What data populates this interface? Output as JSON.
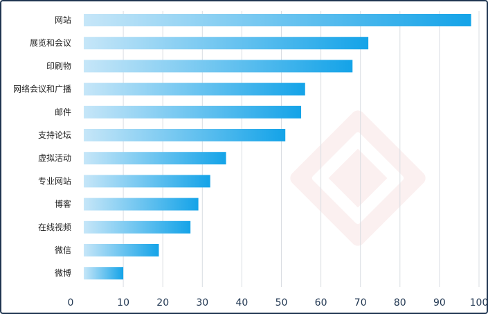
{
  "chart_data": {
    "type": "bar",
    "orientation": "horizontal",
    "categories": [
      "网站",
      "展览和会议",
      "印刷物",
      "网络会议和广播",
      "邮件",
      "支持论坛",
      "虚拟活动",
      "专业网站",
      "博客",
      "在线视频",
      "微信",
      "微博"
    ],
    "values": [
      98,
      72,
      68,
      56,
      55,
      51,
      36,
      32,
      29,
      27,
      19,
      10
    ],
    "xlim": [
      0,
      100
    ],
    "xticks": [
      0,
      10,
      20,
      30,
      40,
      50,
      60,
      70,
      80,
      90,
      100
    ],
    "grid": true,
    "colors": {
      "bar_start": "#c6e6f8",
      "bar_end": "#14a3e8",
      "grid": "#d9dde2",
      "axis_text": "#1f3550"
    }
  }
}
